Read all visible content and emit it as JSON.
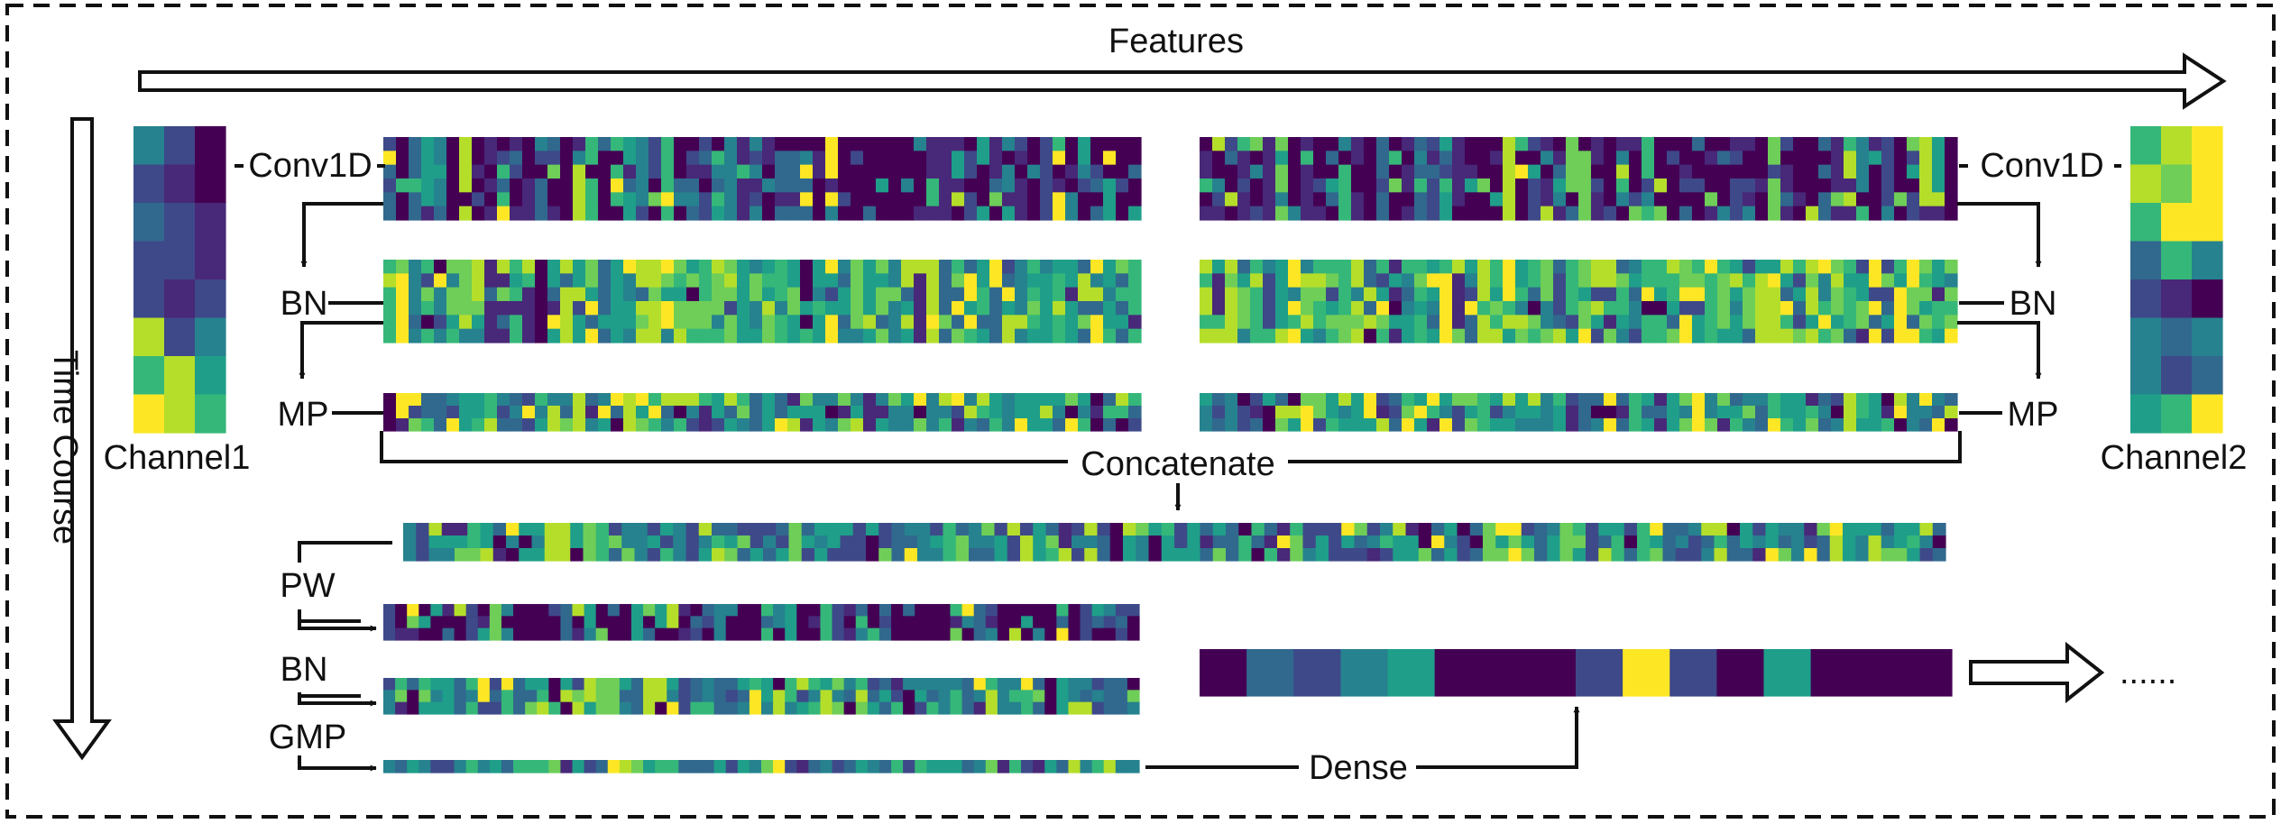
{
  "labels": {
    "features": "Features",
    "time_course": "Time Course",
    "channel1": "Channel1",
    "channel2": "Channel2",
    "conv1d_left": "Conv1D",
    "conv1d_right": "Conv1D",
    "bn_left": "BN",
    "bn_right": "BN",
    "mp_left": "MP",
    "mp_right": "MP",
    "concatenate": "Concatenate",
    "pw": "PW",
    "bn_lower": "BN",
    "gmp": "GMP",
    "dense": "Dense",
    "ellipsis": "......"
  },
  "colors": {
    "stroke": "#111111",
    "viridis": [
      "#440154",
      "#482878",
      "#3e4989",
      "#31688e",
      "#26828e",
      "#1f9e89",
      "#35b779",
      "#6ece58",
      "#b5de2b",
      "#fde725"
    ]
  },
  "heatmaps": {
    "channel1": [
      [
        4,
        2,
        0
      ],
      [
        2,
        1,
        0
      ],
      [
        3,
        2,
        1
      ],
      [
        2,
        2,
        1
      ],
      [
        2,
        1,
        2
      ],
      [
        8,
        2,
        4
      ],
      [
        6,
        8,
        5
      ],
      [
        9,
        8,
        6
      ]
    ],
    "channel2": [
      [
        6,
        8,
        9
      ],
      [
        8,
        7,
        9
      ],
      [
        6,
        9,
        9
      ],
      [
        3,
        6,
        4
      ],
      [
        2,
        1,
        0
      ],
      [
        4,
        3,
        4
      ],
      [
        4,
        2,
        3
      ],
      [
        5,
        6,
        9
      ]
    ],
    "dense": [
      0,
      3,
      2,
      4,
      5,
      0,
      0,
      0,
      2,
      9,
      2,
      0,
      5,
      0,
      0,
      0
    ]
  }
}
